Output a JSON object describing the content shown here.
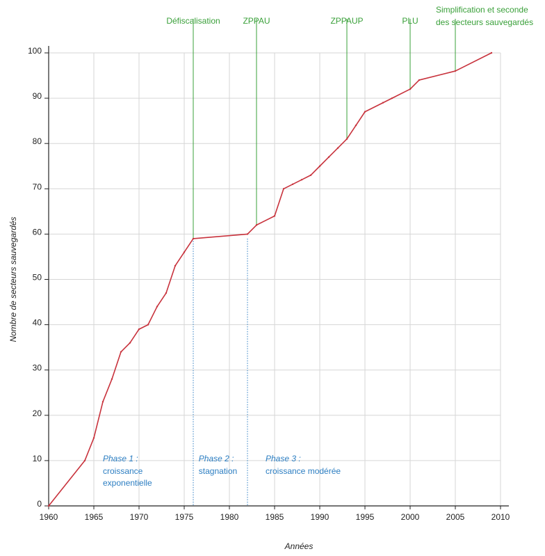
{
  "chart_data": {
    "type": "line",
    "xlabel": "Années",
    "ylabel": "Nombre de secteurs sauvegardés",
    "xlim": [
      1960,
      2010
    ],
    "ylim": [
      0,
      100
    ],
    "x_ticks": [
      "1960",
      "1965",
      "1970",
      "1975",
      "1980",
      "1985",
      "1990",
      "1995",
      "2000",
      "2005",
      "2010"
    ],
    "y_ticks": [
      "0",
      "10",
      "20",
      "30",
      "40",
      "50",
      "60",
      "70",
      "80",
      "90",
      "100"
    ],
    "grid": true,
    "line_color": "#c8323c",
    "event_color": "#3aa03a",
    "phase_color": "#2c7ec2",
    "series": [
      {
        "x": [
          1960,
          1964,
          1965,
          1966,
          1967,
          1968,
          1969,
          1970,
          1971,
          1972,
          1973,
          1974,
          1975,
          1976,
          1982,
          1983,
          1985,
          1986,
          1987,
          1988,
          1989,
          1990,
          1991,
          1992,
          1993,
          1994,
          1995,
          1997,
          1998,
          2000,
          2001,
          2005,
          2009
        ],
        "y": [
          0,
          10,
          15,
          23,
          28,
          34,
          36,
          39,
          40,
          44,
          47,
          53,
          56,
          59,
          60,
          62,
          64,
          70,
          71,
          72,
          73,
          75,
          77,
          79,
          81,
          84,
          87,
          89,
          90,
          92,
          94,
          96,
          100
        ]
      }
    ],
    "events": [
      {
        "label": "Défiscalisation",
        "x": 1976,
        "y": 59
      },
      {
        "label": "ZPPAU",
        "x": 1983,
        "y": 62
      },
      {
        "label": "ZPPAUP",
        "x": 1993,
        "y": 81
      },
      {
        "label": "PLU",
        "x": 2000,
        "y": 92
      },
      {
        "label": "Simplification et seconde",
        "label2": "des secteurs sauvegardés",
        "x": 2005,
        "y": 96
      }
    ],
    "phases": [
      {
        "title": "Phase 1 :",
        "desc": [
          "croissance",
          "exponentielle"
        ],
        "x": 1966
      },
      {
        "title": "Phase 2 :",
        "desc": [
          "stagnation"
        ],
        "x": 1976.6
      },
      {
        "title": "Phase 3 :",
        "desc": [
          "croissance modérée"
        ],
        "x": 1984
      }
    ],
    "phase_dividers": [
      1976,
      1982
    ]
  }
}
